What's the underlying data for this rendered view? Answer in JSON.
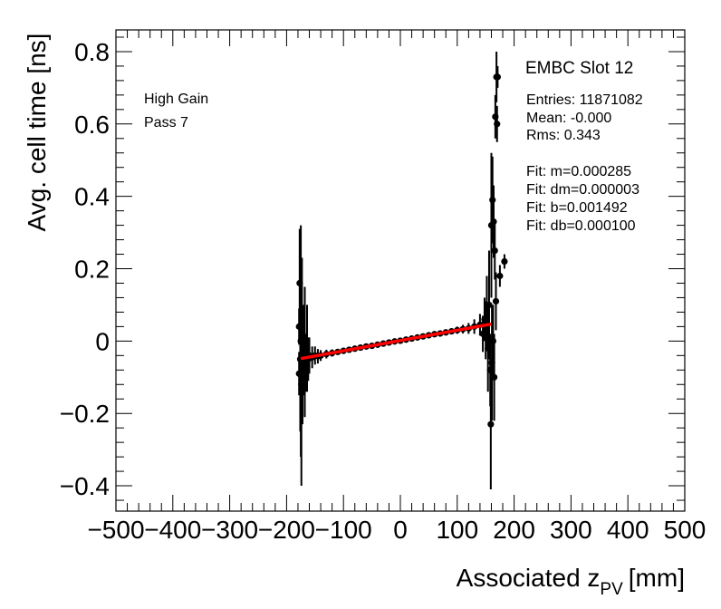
{
  "chart_data": {
    "type": "scatter",
    "title": "EMBC Slot 12",
    "xlabel_main": "Associated z",
    "xlabel_sub": "PV",
    "xlabel_unit": "[mm]",
    "ylabel": "Avg. cell time [ns]",
    "xlim": [
      -500,
      500
    ],
    "ylim": [
      -0.47,
      0.86
    ],
    "xticks": [
      -500,
      -400,
      -300,
      -200,
      -100,
      0,
      100,
      200,
      300,
      400,
      500
    ],
    "xtick_labels": [
      "−500",
      "−400",
      "−300",
      "−200",
      "−100",
      "0",
      "100",
      "200",
      "300",
      "400",
      "500"
    ],
    "yticks": [
      -0.4,
      -0.2,
      0,
      0.2,
      0.4,
      0.6,
      0.8
    ],
    "ytick_labels": [
      "−0.4",
      "−0.2",
      "0",
      "0.2",
      "0.4",
      "0.6",
      "0.8"
    ],
    "annotations": [
      "High Gain",
      "Pass 7"
    ],
    "stats": [
      "Entries: 11871082",
      "Mean: -0.000",
      "Rms: 0.343",
      "Fit: m=0.000285",
      "Fit: dm=0.000003",
      "Fit: b=0.001492",
      "Fit: db=0.000100"
    ],
    "fit_line": {
      "m": 0.000285,
      "b": 0.001492,
      "x_range": [
        -175,
        160
      ],
      "color": "#ff0000"
    },
    "series": [
      {
        "name": "data",
        "color": "#000000",
        "points": [
          {
            "x": -178,
            "y": 0.04,
            "err": 0.05
          },
          {
            "x": -178,
            "y": -0.09,
            "err": 0.06
          },
          {
            "x": -177,
            "y": 0.16,
            "err": 0.15
          },
          {
            "x": -176,
            "y": -0.05,
            "err": 0.2
          },
          {
            "x": -175,
            "y": 0.0,
            "err": 0.32
          },
          {
            "x": -174,
            "y": -0.12,
            "err": 0.28
          },
          {
            "x": -173,
            "y": 0.03,
            "err": 0.2
          },
          {
            "x": -172,
            "y": -0.08,
            "err": 0.15
          },
          {
            "x": -171,
            "y": -0.02,
            "err": 0.12
          },
          {
            "x": -170,
            "y": -0.05,
            "err": 0.1
          },
          {
            "x": -168,
            "y": -0.03,
            "err": 0.18
          },
          {
            "x": -166,
            "y": -0.06,
            "err": 0.08
          },
          {
            "x": -164,
            "y": -0.02,
            "err": 0.12
          },
          {
            "x": -162,
            "y": -0.05,
            "err": 0.06
          },
          {
            "x": -160,
            "y": -0.04,
            "err": 0.05
          },
          {
            "x": -155,
            "y": -0.045,
            "err": 0.03
          },
          {
            "x": -150,
            "y": -0.04,
            "err": 0.025
          },
          {
            "x": -145,
            "y": -0.042,
            "err": 0.02
          },
          {
            "x": -140,
            "y": -0.04,
            "err": 0.015
          },
          {
            "x": -130,
            "y": -0.036,
            "err": 0.012
          },
          {
            "x": -120,
            "y": -0.033,
            "err": 0.01
          },
          {
            "x": -110,
            "y": -0.03,
            "err": 0.008
          },
          {
            "x": -100,
            "y": -0.027,
            "err": 0.007
          },
          {
            "x": -90,
            "y": -0.024,
            "err": 0.006
          },
          {
            "x": -80,
            "y": -0.021,
            "err": 0.006
          },
          {
            "x": -70,
            "y": -0.018,
            "err": 0.005
          },
          {
            "x": -60,
            "y": -0.015,
            "err": 0.005
          },
          {
            "x": -50,
            "y": -0.013,
            "err": 0.005
          },
          {
            "x": -40,
            "y": -0.01,
            "err": 0.005
          },
          {
            "x": -30,
            "y": -0.007,
            "err": 0.005
          },
          {
            "x": -20,
            "y": -0.004,
            "err": 0.005
          },
          {
            "x": -10,
            "y": -0.001,
            "err": 0.005
          },
          {
            "x": 0,
            "y": 0.001,
            "err": 0.005
          },
          {
            "x": 10,
            "y": 0.004,
            "err": 0.005
          },
          {
            "x": 20,
            "y": 0.007,
            "err": 0.005
          },
          {
            "x": 30,
            "y": 0.01,
            "err": 0.005
          },
          {
            "x": 40,
            "y": 0.013,
            "err": 0.005
          },
          {
            "x": 50,
            "y": 0.016,
            "err": 0.005
          },
          {
            "x": 60,
            "y": 0.019,
            "err": 0.006
          },
          {
            "x": 70,
            "y": 0.021,
            "err": 0.006
          },
          {
            "x": 80,
            "y": 0.024,
            "err": 0.007
          },
          {
            "x": 90,
            "y": 0.027,
            "err": 0.008
          },
          {
            "x": 100,
            "y": 0.03,
            "err": 0.01
          },
          {
            "x": 110,
            "y": 0.033,
            "err": 0.012
          },
          {
            "x": 120,
            "y": 0.035,
            "err": 0.015
          },
          {
            "x": 130,
            "y": 0.04,
            "err": 0.02
          },
          {
            "x": 140,
            "y": 0.045,
            "err": 0.03
          },
          {
            "x": 145,
            "y": 0.02,
            "err": 0.05
          },
          {
            "x": 148,
            "y": 0.06,
            "err": 0.06
          },
          {
            "x": 150,
            "y": 0.03,
            "err": 0.08
          },
          {
            "x": 152,
            "y": 0.08,
            "err": 0.1
          },
          {
            "x": 154,
            "y": -0.02,
            "err": 0.12
          },
          {
            "x": 156,
            "y": 0.1,
            "err": 0.15
          },
          {
            "x": 158,
            "y": -0.08,
            "err": 0.1
          },
          {
            "x": 159,
            "y": -0.23,
            "err": 0.18
          },
          {
            "x": 160,
            "y": 0.32,
            "err": 0.2
          },
          {
            "x": 161,
            "y": -0.06,
            "err": 0.16
          },
          {
            "x": 162,
            "y": 0.39,
            "err": 0.12
          },
          {
            "x": 163,
            "y": 0.0,
            "err": 0.1
          },
          {
            "x": 164,
            "y": 0.33,
            "err": 0.1
          },
          {
            "x": 165,
            "y": -0.1,
            "err": 0.12
          },
          {
            "x": 166,
            "y": 0.25,
            "err": 0.08
          },
          {
            "x": 167,
            "y": 0.62,
            "err": 0.06
          },
          {
            "x": 168,
            "y": 0.11,
            "err": 0.08
          },
          {
            "x": 169,
            "y": 0.73,
            "err": 0.07
          },
          {
            "x": 170,
            "y": 0.6,
            "err": 0.05
          },
          {
            "x": 171,
            "y": 0.73,
            "err": 0.03
          },
          {
            "x": 175,
            "y": 0.18,
            "err": 0.03
          },
          {
            "x": 183,
            "y": 0.22,
            "err": 0.02
          }
        ]
      }
    ]
  }
}
